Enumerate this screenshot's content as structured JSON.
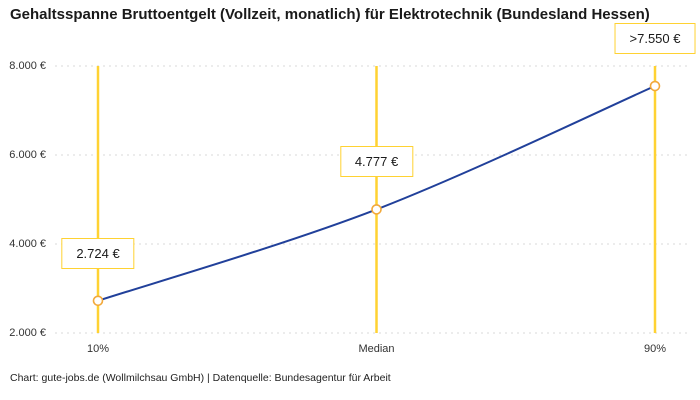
{
  "title": "Gehaltsspanne Bruttoentgelt (Vollzeit, monatlich) für Elektrotechnik (Bundesland Hessen)",
  "footer": "Chart: gute-jobs.de (Wollmilchsau GmbH) | Datenquelle: Bundesagentur für Arbeit",
  "colors": {
    "accent_yellow": "#FFD232",
    "line_blue": "#21409A",
    "marker_orange": "#F2A93B",
    "grid": "#D9D9D9"
  },
  "chart_data": {
    "type": "line",
    "title": "Gehaltsspanne Bruttoentgelt (Vollzeit, monatlich) für Elektrotechnik (Bundesland Hessen)",
    "categories": [
      "10%",
      "Median",
      "90%"
    ],
    "values": [
      2724,
      4777,
      7550
    ],
    "point_labels": [
      "2.724 €",
      "4.777 €",
      ">7.550 €"
    ],
    "ylim": [
      2000,
      8000
    ],
    "yticks": [
      2000,
      4000,
      6000,
      8000
    ],
    "ytick_labels": [
      "2.000 €",
      "4.000 €",
      "6.000 €",
      "8.000 €"
    ],
    "grid": "horizontal-dotted",
    "legend": "none",
    "annotations": "vertical yellow reference line at each category; value label box above each point",
    "source": "Chart: gute-jobs.de (Wollmilchsau GmbH) | Datenquelle: Bundesagentur für Arbeit"
  }
}
